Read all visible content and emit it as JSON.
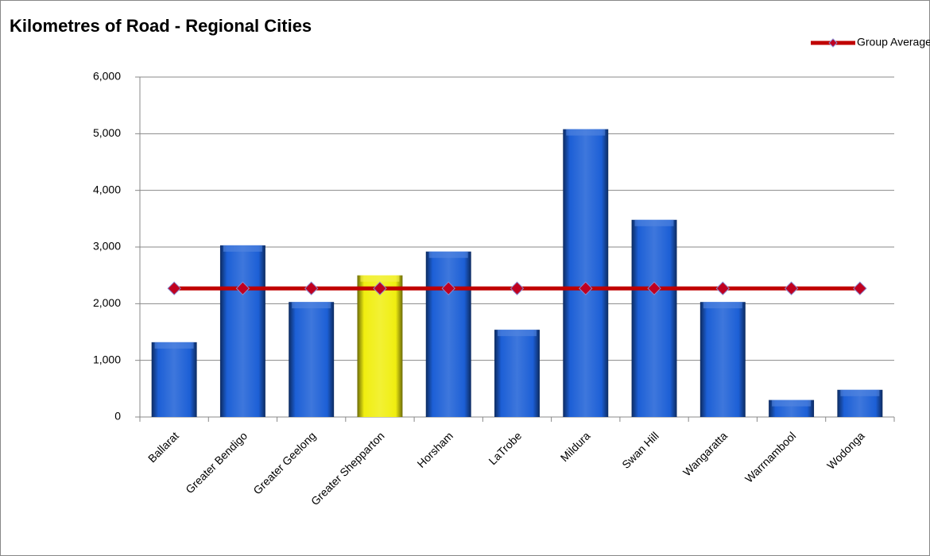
{
  "chart_data": {
    "type": "bar",
    "title": "Kilometres of Road - Regional Cities",
    "categories": [
      "Ballarat",
      "Greater Bendigo",
      "Greater Geelong",
      "Greater Shepparton",
      "Horsham",
      "LaTrobe",
      "Mildura",
      "Swan Hill",
      "Wangaratta",
      "Warrnambool",
      "Wodonga"
    ],
    "series": [
      {
        "type": "bar",
        "colors": [
          "#1c5fd6",
          "#1c5fd6",
          "#1c5fd6",
          "#f0ee10",
          "#1c5fd6",
          "#1c5fd6",
          "#1c5fd6",
          "#1c5fd6",
          "#1c5fd6",
          "#1c5fd6",
          "#1c5fd6"
        ],
        "values": [
          1320,
          3030,
          2030,
          2500,
          2920,
          1540,
          5080,
          3480,
          2030,
          300,
          480
        ]
      },
      {
        "type": "line",
        "name": "Group Average",
        "color": "#c00000",
        "marker_color": "#c00020",
        "values": [
          2270,
          2270,
          2270,
          2270,
          2270,
          2270,
          2270,
          2270,
          2270,
          2270,
          2270
        ]
      }
    ],
    "ylim": [
      0,
      6000
    ],
    "yticks": [
      0,
      {
        "value": 1000,
        "label": "1,000"
      },
      {
        "value": 2000,
        "label": "2,000"
      },
      {
        "value": 3000,
        "label": "3,000"
      },
      {
        "value": 4000,
        "label": "4,000"
      },
      {
        "value": 5000,
        "label": "5,000"
      },
      {
        "value": 6000,
        "label": "6,000"
      }
    ],
    "grid": true,
    "legend": "top-right"
  }
}
